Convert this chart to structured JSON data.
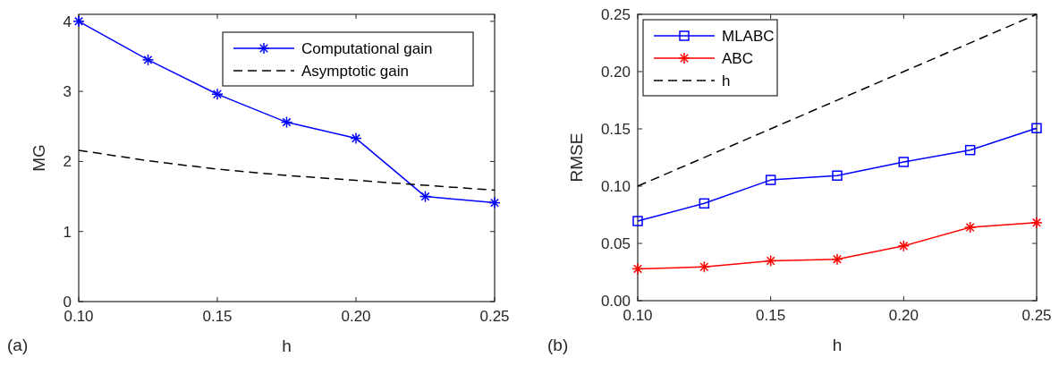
{
  "chart_data": [
    {
      "type": "line",
      "xlabel": "h",
      "ylabel": "MG",
      "annotations": [
        "(a)"
      ],
      "legend": "top right",
      "grid": false,
      "xlim": [
        0.1,
        0.25
      ],
      "xticks": [
        {
          "value": 0.1,
          "label": "0.10"
        },
        {
          "value": 0.15,
          "label": "0.15"
        },
        {
          "value": 0.2,
          "label": "0.20"
        },
        {
          "value": 0.25,
          "label": "0.25"
        }
      ],
      "ylim": [
        0,
        4.1
      ],
      "yticks": [
        0,
        1,
        2,
        3,
        4
      ],
      "series": [
        {
          "name": "Computational gain",
          "color": "#0000ff",
          "marker": "cross",
          "line_style": "solid",
          "x": [
            0.1,
            0.125,
            0.15,
            0.175,
            0.2,
            0.225,
            0.25
          ],
          "values": [
            4.0,
            3.45,
            2.96,
            2.56,
            2.33,
            1.5,
            1.41
          ]
        },
        {
          "name": "Asymptotic gain",
          "color": "#000000",
          "marker": "none",
          "line_style": "dashed",
          "x": [
            0.1,
            0.125,
            0.15,
            0.175,
            0.2,
            0.225,
            0.25
          ],
          "values": [
            2.16,
            2.01,
            1.89,
            1.8,
            1.73,
            1.66,
            1.59
          ]
        }
      ]
    },
    {
      "type": "line",
      "xlabel": "h",
      "ylabel": "RMSE",
      "annotations": [
        "(b)"
      ],
      "legend": "top left",
      "grid": false,
      "xlim": [
        0.1,
        0.25
      ],
      "xticks": [
        {
          "value": 0.1,
          "label": "0.10"
        },
        {
          "value": 0.15,
          "label": "0.15"
        },
        {
          "value": 0.2,
          "label": "0.20"
        },
        {
          "value": 0.25,
          "label": "0.25"
        }
      ],
      "ylim": [
        0,
        0.25
      ],
      "yticks": [
        {
          "value": 0,
          "label": "0.00"
        },
        {
          "value": 0.05,
          "label": "0.05"
        },
        {
          "value": 0.1,
          "label": "0.10"
        },
        {
          "value": 0.15,
          "label": "0.15"
        },
        {
          "value": 0.2,
          "label": "0.20"
        },
        {
          "value": 0.25,
          "label": "0.25"
        }
      ],
      "series": [
        {
          "name": "MLABC",
          "color": "#0000ff",
          "marker": "square",
          "line_style": "solid",
          "x": [
            0.1,
            0.125,
            0.15,
            0.175,
            0.2,
            0.225,
            0.25
          ],
          "values": [
            0.0695,
            0.0849,
            0.1054,
            0.1092,
            0.1211,
            0.1315,
            0.1506
          ]
        },
        {
          "name": "ABC",
          "color": "#ff0000",
          "marker": "cross",
          "line_style": "solid",
          "x": [
            0.1,
            0.125,
            0.15,
            0.175,
            0.2,
            0.225,
            0.25
          ],
          "values": [
            0.0278,
            0.0295,
            0.0348,
            0.0362,
            0.0478,
            0.064,
            0.0681
          ]
        },
        {
          "name": "h",
          "color": "#000000",
          "marker": "none",
          "line_style": "dashed",
          "x": [
            0.1,
            0.25
          ],
          "values": [
            0.1,
            0.25
          ]
        }
      ]
    }
  ]
}
